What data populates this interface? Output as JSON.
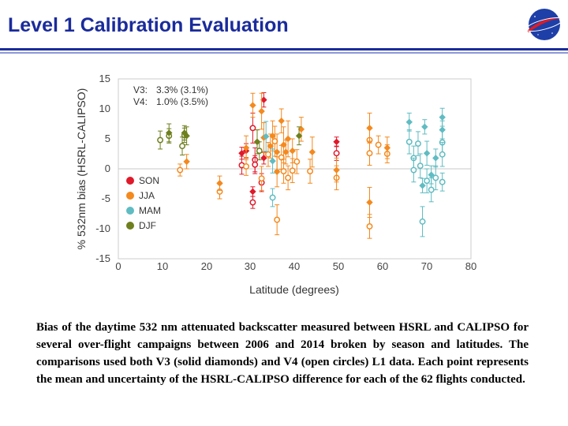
{
  "slide": {
    "title": "Level 1 Calibration Evaluation",
    "logo_text": "NASA",
    "caption": "Bias of the daytime 532 nm attenuated backscatter measured between HSRL and CALIPSO for several over-flight campaigns between 2006 and 2014 broken by season and latitudes. The comparisons used both V3 (solid diamonds) and V4 (open circles) L1 data. Each point represents the mean and uncertainty of the HSRL-CALIPSO difference for each of the 62 flights conducted."
  },
  "colors": {
    "title": "#1a2b9c",
    "SON": "#e0192b",
    "JJA": "#f4891e",
    "MAM": "#5fbcc2",
    "DJF": "#6e7f1e",
    "zero_line": "#c8c8c8"
  },
  "chart_data": {
    "type": "scatter",
    "xlabel": "Latitude (degrees)",
    "ylabel": "% 532nm bias (HSRL-CALIPSO)",
    "xlim": [
      0,
      80
    ],
    "ylim": [
      -15,
      15
    ],
    "xticks": [
      "0",
      "10",
      "20",
      "30",
      "40",
      "50",
      "60",
      "70",
      "80"
    ],
    "yticks": [
      "15",
      "10",
      "5",
      "0",
      "-5",
      "-10",
      "-15"
    ],
    "version_stats": [
      {
        "label": "V3:",
        "value": "3.3% (3.1%)"
      },
      {
        "label": "V4:",
        "value": "1.0% (3.5%)"
      }
    ],
    "legend": [
      "SON",
      "JJA",
      "MAM",
      "DJF"
    ],
    "legend_position": "left",
    "grid": false,
    "series": [
      {
        "name": "SON",
        "v3": [
          [
            28,
            2.6,
            1.0
          ],
          [
            29,
            3.0,
            1.2
          ],
          [
            30.5,
            -3.8,
            0.8
          ],
          [
            33,
            11.5,
            1.2
          ],
          [
            49.5,
            4.5,
            0.8
          ],
          [
            33,
            1.8,
            1.0
          ]
        ],
        "v4": [
          [
            28,
            0.6,
            1.5
          ],
          [
            30.5,
            6.8,
            2.5
          ],
          [
            31,
            1.5,
            2.0
          ],
          [
            30.5,
            -5.6,
            1.0
          ],
          [
            32.5,
            -2.3,
            1.5
          ],
          [
            49.5,
            2.6,
            1.2
          ],
          [
            31,
            0.7,
            1.5
          ]
        ]
      },
      {
        "name": "JJA",
        "v3": [
          [
            23,
            -2.4,
            1.2
          ],
          [
            29,
            3.5,
            2.0
          ],
          [
            30.5,
            10.6,
            2.0
          ],
          [
            32.5,
            9.6,
            3.0
          ],
          [
            33,
            5.2,
            2.5
          ],
          [
            34.5,
            3.8,
            2.0
          ],
          [
            35,
            5.5,
            2.5
          ],
          [
            36,
            2.8,
            3.0
          ],
          [
            36,
            -0.5,
            2.5
          ],
          [
            37,
            8.0,
            2.0
          ],
          [
            37.5,
            4.0,
            3.0
          ],
          [
            38,
            2.8,
            2.0
          ],
          [
            38.5,
            5.0,
            3.0
          ],
          [
            39.5,
            3.0,
            2.0
          ],
          [
            41.5,
            6.6,
            2.0
          ],
          [
            44,
            2.8,
            2.5
          ],
          [
            49.5,
            -0.2,
            2.0
          ],
          [
            57,
            6.8,
            2.5
          ],
          [
            57,
            -5.6,
            2.5
          ],
          [
            61,
            3.5,
            1.8
          ],
          [
            15.5,
            1.2,
            1.2
          ],
          [
            31.5,
            4.5,
            2.0
          ]
        ],
        "v4": [
          [
            14,
            -0.2,
            1.0
          ],
          [
            23,
            -3.8,
            1.2
          ],
          [
            29,
            0.4,
            1.5
          ],
          [
            32.5,
            -1.6,
            2.0
          ],
          [
            34,
            2.4,
            2.0
          ],
          [
            35.5,
            4.6,
            2.5
          ],
          [
            36,
            -8.5,
            2.5
          ],
          [
            37,
            1.9,
            2.0
          ],
          [
            37.5,
            -0.4,
            2.0
          ],
          [
            38.5,
            -1.5,
            2.0
          ],
          [
            39.5,
            -0.3,
            2.0
          ],
          [
            40.5,
            1.2,
            2.0
          ],
          [
            43.5,
            -0.4,
            2.0
          ],
          [
            49.5,
            -1.5,
            2.0
          ],
          [
            57,
            4.8,
            2.0
          ],
          [
            57,
            2.6,
            2.0
          ],
          [
            57,
            -9.6,
            2.0
          ],
          [
            59,
            4.0,
            1.5
          ],
          [
            61,
            2.5,
            1.5
          ]
        ]
      },
      {
        "name": "MAM",
        "v3": [
          [
            33.5,
            5.4,
            2.5
          ],
          [
            35,
            1.3,
            2.0
          ],
          [
            66,
            7.8,
            1.5
          ],
          [
            69,
            -2.8,
            1.2
          ],
          [
            69.5,
            7.0,
            1.2
          ],
          [
            70,
            2.6,
            2.0
          ],
          [
            71,
            -1.0,
            1.5
          ],
          [
            72,
            1.8,
            1.5
          ],
          [
            73.5,
            8.6,
            1.5
          ],
          [
            73.5,
            6.5,
            1.5
          ]
        ],
        "v4": [
          [
            35,
            -4.8,
            1.5
          ],
          [
            66,
            4.5,
            2.0
          ],
          [
            67,
            1.8,
            2.0
          ],
          [
            67,
            -0.2,
            2.0
          ],
          [
            68.5,
            0.5,
            2.0
          ],
          [
            69,
            -8.8,
            2.5
          ],
          [
            70,
            -2.0,
            2.0
          ],
          [
            71,
            -3.5,
            2.0
          ],
          [
            72,
            -1.5,
            2.0
          ],
          [
            73.5,
            4.4,
            2.0
          ],
          [
            73.5,
            2.4,
            2.0
          ],
          [
            73.5,
            -2.2,
            1.5
          ],
          [
            68,
            4.2,
            2.0
          ]
        ]
      },
      {
        "name": "DJF",
        "v3": [
          [
            11.5,
            6.0,
            1.5
          ],
          [
            15,
            6.0,
            1.2
          ],
          [
            15.5,
            5.5,
            1.5
          ],
          [
            31.5,
            4.5,
            2.0
          ],
          [
            41,
            5.5,
            1.5
          ]
        ],
        "v4": [
          [
            9.5,
            4.8,
            1.5
          ],
          [
            11.5,
            5.5,
            1.2
          ],
          [
            14.5,
            3.8,
            1.5
          ],
          [
            15,
            5.6,
            1.2
          ],
          [
            32,
            3.0,
            1.5
          ]
        ]
      }
    ]
  }
}
